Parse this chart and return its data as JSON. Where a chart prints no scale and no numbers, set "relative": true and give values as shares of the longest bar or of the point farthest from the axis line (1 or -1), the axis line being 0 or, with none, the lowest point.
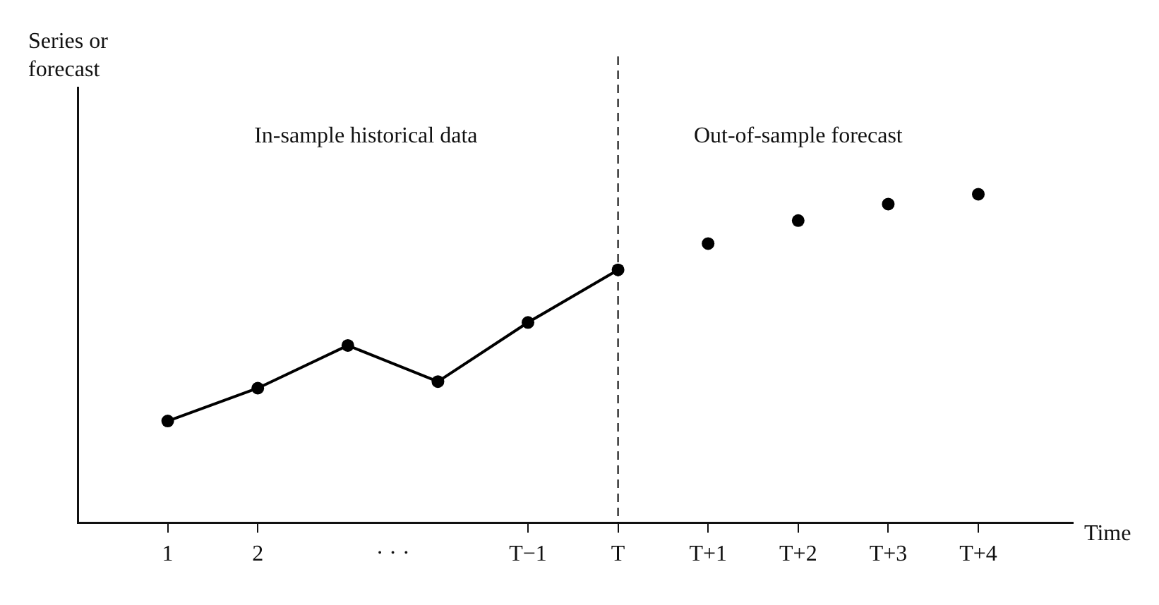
{
  "chart_data": {
    "type": "line",
    "relative": true,
    "tick_labels": "x",
    "marker": "circle",
    "xlabel": "Time",
    "ylabel": "Series or forecast",
    "categories": [
      "1",
      "2",
      null,
      null,
      "T−1",
      "T",
      "T+1",
      "T+2",
      "T+3",
      "T+4"
    ],
    "series": [
      {
        "color": "#000000",
        "values": [
          0.31,
          0.41,
          0.54,
          0.43,
          0.61,
          0.77,
          null,
          null,
          null,
          null
        ]
      },
      {
        "type": "scatter",
        "color": "#000000",
        "values": [
          null,
          null,
          null,
          null,
          null,
          null,
          0.85,
          0.92,
          0.97,
          1
        ]
      }
    ],
    "ref_lines": [
      {
        "axis": "x",
        "value": "T",
        "color": "#000000",
        "line_style": "dashed"
      }
    ],
    "annotations": [
      "In-sample historical data",
      "Out-of-sample forecast",
      "· · ·"
    ]
  }
}
